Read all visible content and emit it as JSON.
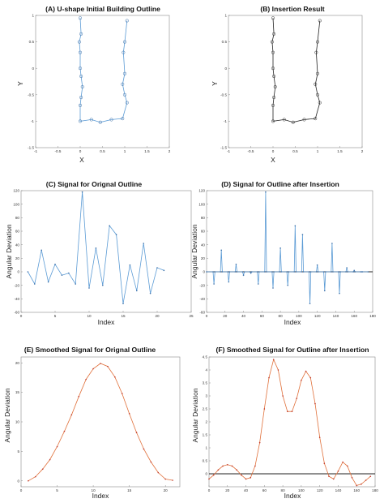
{
  "chart_data": [
    {
      "type": "line",
      "title": "(A) U-shape Initial Building Outline",
      "xlabel": "X",
      "ylabel": "Y",
      "xlim": [
        -1,
        2
      ],
      "ylim": [
        -1.5,
        1
      ],
      "xticks": [
        -1,
        -0.5,
        0,
        0.5,
        1,
        1.5,
        2
      ],
      "yticks": [
        -1.5,
        -1,
        -0.5,
        0,
        0.5,
        1
      ],
      "xtick_labels": [
        "-1",
        "-0.5",
        "0",
        "0.5",
        "1",
        "1.5",
        "2"
      ],
      "ytick_labels": [
        "-1.5",
        "-1",
        "-0.5",
        "0",
        "0.5",
        "1"
      ],
      "line_color": "#5b9bd5",
      "marker": "circle",
      "x": [
        0.0,
        0.02,
        -0.02,
        0.0,
        0.0,
        0.02,
        0.05,
        0.02,
        0.0,
        0.0,
        0.25,
        0.45,
        0.7,
        0.95,
        1.05,
        1.0,
        0.95,
        1.0,
        0.97,
        1.0,
        1.05
      ],
      "y": [
        0.95,
        0.65,
        0.5,
        0.3,
        0.0,
        -0.15,
        -0.35,
        -0.55,
        -0.7,
        -1.0,
        -0.97,
        -1.02,
        -0.97,
        -0.95,
        -0.65,
        -0.5,
        -0.3,
        -0.1,
        0.3,
        0.5,
        0.9
      ]
    },
    {
      "type": "line",
      "title": "(B) Insertion Result",
      "xlabel": "X",
      "ylabel": "Y",
      "xlim": [
        -1,
        2
      ],
      "ylim": [
        -1.5,
        1
      ],
      "xticks": [
        -1,
        -0.5,
        0,
        0.5,
        1,
        1.5,
        2
      ],
      "yticks": [
        -1.5,
        -1,
        -0.5,
        0,
        0.5,
        1
      ],
      "xtick_labels": [
        "-1",
        "-0.5",
        "0",
        "0.5",
        "1",
        "1.5",
        "2"
      ],
      "ytick_labels": [
        "-1.5",
        "-1",
        "-0.5",
        "0",
        "0.5",
        "1"
      ],
      "line_color": "#222222",
      "marker": "circle",
      "x": [
        0.0,
        0.02,
        -0.02,
        0.0,
        0.0,
        0.02,
        0.05,
        0.02,
        0.0,
        0.0,
        0.25,
        0.45,
        0.7,
        0.95,
        1.05,
        1.0,
        0.95,
        1.0,
        0.97,
        1.0,
        1.05
      ],
      "y": [
        0.95,
        0.65,
        0.5,
        0.3,
        0.0,
        -0.15,
        -0.35,
        -0.55,
        -0.7,
        -1.0,
        -0.97,
        -1.02,
        -0.97,
        -0.95,
        -0.65,
        -0.5,
        -0.3,
        -0.1,
        0.3,
        0.5,
        0.9
      ]
    },
    {
      "type": "line",
      "title": "(C) Signal for Orignal Outline",
      "xlabel": "Index",
      "ylabel": "Angular Deviation",
      "xlim": [
        0,
        25
      ],
      "ylim": [
        -60,
        120
      ],
      "xticks": [
        0,
        5,
        10,
        15,
        20,
        25
      ],
      "yticks": [
        -60,
        -40,
        -20,
        0,
        20,
        40,
        60,
        80,
        100,
        120
      ],
      "xtick_labels": [
        "0",
        "5",
        "10",
        "15",
        "20",
        "25"
      ],
      "ytick_labels": [
        "-60",
        "-40",
        "-20",
        "0",
        "20",
        "40",
        "60",
        "80",
        "100",
        "120"
      ],
      "line_color": "#5b9bd5",
      "marker": "dot",
      "x": [
        1,
        2,
        3,
        4,
        5,
        6,
        7,
        8,
        9,
        10,
        11,
        12,
        13,
        14,
        15,
        16,
        17,
        18,
        19,
        20,
        21
      ],
      "y": [
        0,
        -18,
        32,
        -15,
        11,
        -5,
        -2,
        -18,
        118,
        -24,
        35,
        -20,
        68,
        55,
        -47,
        10,
        -28,
        42,
        -32,
        6,
        2
      ]
    },
    {
      "type": "line",
      "title": "(D) Signal for Outline after Insertion",
      "xlabel": "Index",
      "ylabel": "Angular Deviation",
      "xlim": [
        0,
        180
      ],
      "ylim": [
        -60,
        120
      ],
      "xticks": [
        0,
        20,
        40,
        60,
        80,
        100,
        120,
        140,
        160,
        180
      ],
      "yticks": [
        -60,
        -40,
        -20,
        0,
        20,
        40,
        60,
        80,
        100,
        120
      ],
      "xtick_labels": [
        "0",
        "20",
        "40",
        "60",
        "80",
        "100",
        "120",
        "140",
        "160",
        "180"
      ],
      "ytick_labels": [
        "-60",
        "-40",
        "-20",
        "0",
        "20",
        "40",
        "60",
        "80",
        "100",
        "120"
      ],
      "line_color": "#5b9bd5",
      "baseline_color": "#222222",
      "marker": "dot",
      "x": [
        0,
        7,
        8,
        9,
        15,
        16,
        17,
        23,
        24,
        25,
        31,
        32,
        33,
        39,
        40,
        41,
        47,
        48,
        49,
        55,
        56,
        57,
        63,
        64,
        65,
        71,
        72,
        73,
        79,
        80,
        81,
        87,
        88,
        89,
        95,
        96,
        97,
        103,
        104,
        105,
        111,
        112,
        113,
        119,
        120,
        121,
        127,
        128,
        129,
        135,
        136,
        137,
        143,
        144,
        145,
        151,
        152,
        153,
        159,
        160,
        161,
        167,
        168,
        169,
        175
      ],
      "y": [
        0,
        0,
        -18,
        0,
        0,
        32,
        0,
        0,
        -15,
        0,
        0,
        11,
        0,
        0,
        -5,
        0,
        0,
        -2,
        0,
        0,
        -18,
        0,
        0,
        118,
        0,
        0,
        -24,
        0,
        0,
        35,
        0,
        0,
        -20,
        0,
        0,
        68,
        0,
        0,
        55,
        0,
        0,
        -47,
        0,
        0,
        10,
        0,
        0,
        -28,
        0,
        0,
        42,
        0,
        0,
        -32,
        0,
        0,
        6,
        0,
        0,
        2,
        0,
        0,
        0,
        0,
        0
      ]
    },
    {
      "type": "line",
      "title": "(E) Smoothed Signal for Orignal Outline",
      "xlabel": "Index",
      "ylabel": "Angular Deviation",
      "xlim": [
        0,
        22
      ],
      "ylim": [
        -1,
        21
      ],
      "xticks": [
        0,
        5,
        10,
        15,
        20
      ],
      "yticks": [
        0,
        5,
        10,
        15,
        20
      ],
      "xtick_labels": [
        "0",
        "5",
        "10",
        "15",
        "20"
      ],
      "ytick_labels": [
        "0",
        "5",
        "10",
        "15",
        "20"
      ],
      "line_color": "#e0703a",
      "marker": "dot",
      "x": [
        1,
        2,
        3,
        4,
        5,
        6,
        7,
        8,
        9,
        10,
        11,
        12,
        13,
        14,
        15,
        16,
        17,
        18,
        19,
        20,
        21
      ],
      "y": [
        0.0,
        0.7,
        2.0,
        3.6,
        5.8,
        8.4,
        11.2,
        14.3,
        17.2,
        19.0,
        19.9,
        19.4,
        17.6,
        14.8,
        11.4,
        8.2,
        5.4,
        3.2,
        1.4,
        0.3,
        0.1
      ]
    },
    {
      "type": "line",
      "title": "(F) Smoothed Signal for Outline after Insertion",
      "xlabel": "Index",
      "ylabel": "Angular Deviation",
      "xlim": [
        0,
        180
      ],
      "ylim": [
        -0.5,
        4.5
      ],
      "xticks": [
        0,
        20,
        40,
        60,
        80,
        100,
        120,
        140,
        160,
        180
      ],
      "yticks": [
        0,
        0.5,
        1,
        1.5,
        2,
        2.5,
        3,
        3.5,
        4,
        4.5
      ],
      "xtick_labels": [
        "0",
        "20",
        "40",
        "60",
        "80",
        "100",
        "120",
        "140",
        "160",
        "180"
      ],
      "ytick_labels": [
        "0",
        "0.5",
        "1",
        "1.5",
        "2",
        "2.5",
        "3",
        "3.5",
        "4",
        "4.5"
      ],
      "line_color": "#e0703a",
      "baseline_color": "#222222",
      "marker": "dot",
      "x": [
        0,
        5,
        10,
        15,
        20,
        25,
        30,
        35,
        40,
        45,
        50,
        55,
        60,
        65,
        70,
        75,
        80,
        85,
        90,
        95,
        100,
        105,
        110,
        115,
        120,
        125,
        130,
        135,
        140,
        145,
        150,
        155,
        160,
        165,
        170,
        175
      ],
      "y": [
        -0.2,
        -0.05,
        0.15,
        0.3,
        0.35,
        0.3,
        0.15,
        -0.05,
        -0.2,
        -0.15,
        0.3,
        1.2,
        2.5,
        3.7,
        4.4,
        4.0,
        3.0,
        2.4,
        2.4,
        2.9,
        3.6,
        3.95,
        3.7,
        2.7,
        1.4,
        0.4,
        -0.1,
        -0.2,
        0.1,
        0.45,
        0.3,
        -0.15,
        -0.45,
        -0.4,
        -0.25,
        -0.1
      ]
    }
  ]
}
